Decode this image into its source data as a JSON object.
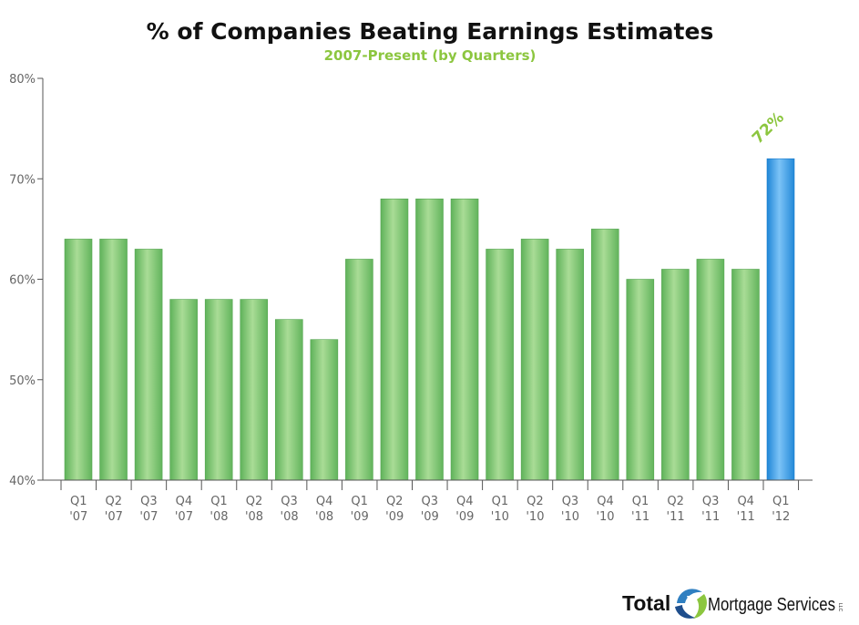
{
  "chart_data": {
    "type": "bar",
    "title": "% of Companies Beating Earnings Estimates",
    "subtitle": "2007-Present (by Quarters)",
    "xlabel": "",
    "ylabel": "",
    "ylim": [
      40,
      80
    ],
    "yticks": [
      {
        "value": 40,
        "label": "40%"
      },
      {
        "value": 50,
        "label": "50%"
      },
      {
        "value": 60,
        "label": "60%"
      },
      {
        "value": 70,
        "label": "70%"
      },
      {
        "value": 80,
        "label": "80%"
      }
    ],
    "categories": [
      {
        "q": "Q1",
        "y": "'07"
      },
      {
        "q": "Q2",
        "y": "'07"
      },
      {
        "q": "Q3",
        "y": "'07"
      },
      {
        "q": "Q4",
        "y": "'07"
      },
      {
        "q": "Q1",
        "y": "'08"
      },
      {
        "q": "Q2",
        "y": "'08"
      },
      {
        "q": "Q3",
        "y": "'08"
      },
      {
        "q": "Q4",
        "y": "'08"
      },
      {
        "q": "Q1",
        "y": "'09"
      },
      {
        "q": "Q2",
        "y": "'09"
      },
      {
        "q": "Q3",
        "y": "'09"
      },
      {
        "q": "Q4",
        "y": "'09"
      },
      {
        "q": "Q1",
        "y": "'10"
      },
      {
        "q": "Q2",
        "y": "'10"
      },
      {
        "q": "Q3",
        "y": "'10"
      },
      {
        "q": "Q4",
        "y": "'10"
      },
      {
        "q": "Q1",
        "y": "'11"
      },
      {
        "q": "Q2",
        "y": "'11"
      },
      {
        "q": "Q3",
        "y": "'11"
      },
      {
        "q": "Q4",
        "y": "'11"
      },
      {
        "q": "Q1",
        "y": "'12"
      }
    ],
    "values": [
      64,
      64,
      63,
      58,
      58,
      58,
      56,
      54,
      62,
      68,
      68,
      68,
      63,
      64,
      63,
      65,
      60,
      61,
      62,
      61,
      72
    ],
    "highlight": {
      "index": 20,
      "label": "72%"
    },
    "colors": {
      "bar": "#7dc36b",
      "highlight": "#3398e6",
      "label": "#8cc63f"
    },
    "grid": false,
    "legend": "none"
  },
  "logo": {
    "word1": "Total",
    "word2": "Mortgage Services",
    "mark": "LLC"
  }
}
